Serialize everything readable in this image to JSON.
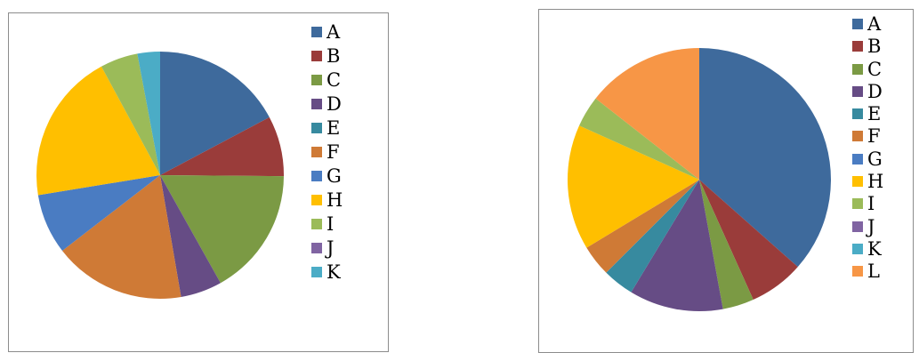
{
  "chart_data": [
    {
      "type": "pie",
      "categories": [
        "A",
        "B",
        "C",
        "D",
        "E",
        "F",
        "G",
        "H",
        "I",
        "J",
        "K"
      ],
      "values": [
        17.5,
        8,
        17,
        5.5,
        0,
        17.5,
        8,
        20,
        5,
        0,
        3
      ],
      "legend_position": "right"
    },
    {
      "type": "pie",
      "categories": [
        "A",
        "B",
        "C",
        "D",
        "E",
        "F",
        "G",
        "H",
        "I",
        "J",
        "K",
        "L"
      ],
      "values": [
        38,
        7,
        4,
        12,
        4,
        4,
        0,
        16,
        4,
        0,
        0,
        15
      ],
      "legend_position": "right"
    }
  ],
  "colors": [
    "#3e6a9c",
    "#9a3c3a",
    "#7b9a44",
    "#664c85",
    "#378a9f",
    "#cf7a36",
    "#4a7cc2",
    "#ffbf00",
    "#9bbb59",
    "#8064a2",
    "#4bacc6",
    "#f79646"
  ]
}
